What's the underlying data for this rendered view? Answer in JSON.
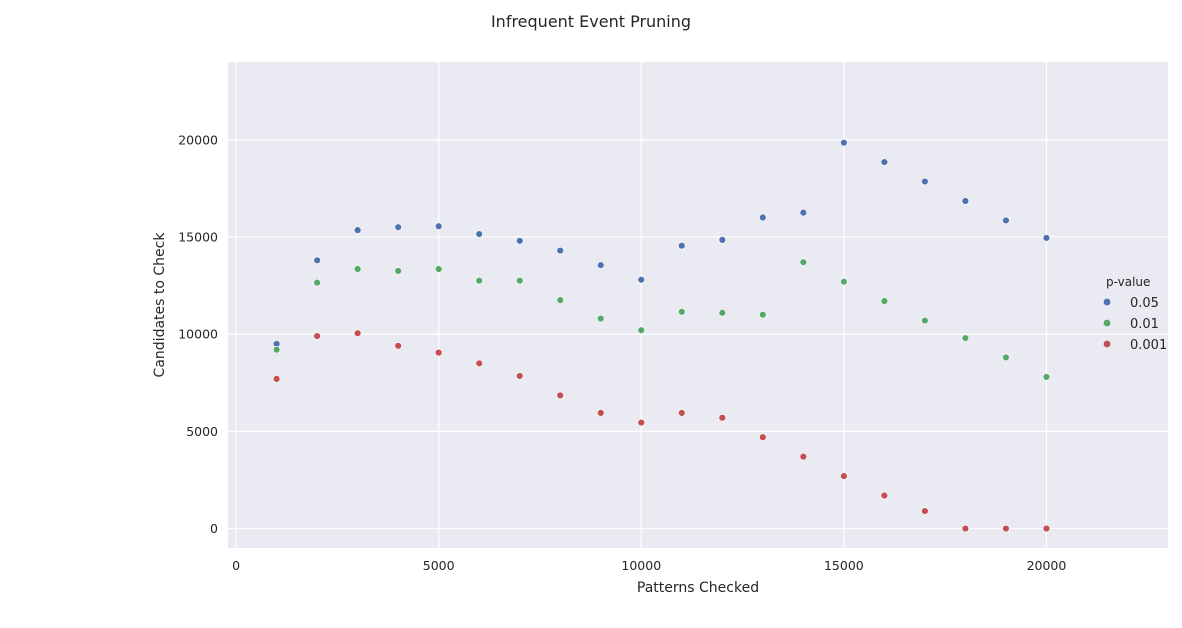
{
  "chart_data": {
    "type": "scatter",
    "title": "Infrequent Event Pruning",
    "xlabel": "Patterns Checked",
    "ylabel": "Candidates to Check",
    "xlim": [
      -200,
      23000
    ],
    "ylim": [
      -1000,
      24000
    ],
    "x_ticks": [
      0,
      5000,
      10000,
      15000,
      20000
    ],
    "y_ticks": [
      0,
      5000,
      10000,
      15000,
      20000
    ],
    "grid": true,
    "background": "#eaeaf2",
    "legend": {
      "title": "p-value",
      "placement": "right",
      "entries": [
        "0.05",
        "0.01",
        "0.001"
      ]
    },
    "series": [
      {
        "name": "0.05",
        "color": "#4c72b0",
        "x": [
          1000,
          2000,
          3000,
          4000,
          5000,
          6000,
          7000,
          8000,
          9000,
          10000,
          11000,
          12000,
          13000,
          14000,
          15000,
          16000,
          17000,
          18000,
          19000,
          20000
        ],
        "y": [
          9500,
          13800,
          15350,
          15500,
          15550,
          15150,
          14800,
          14300,
          13550,
          12800,
          14550,
          14850,
          16000,
          16250,
          19850,
          18850,
          17850,
          16850,
          15850,
          14950
        ]
      },
      {
        "name": "0.01",
        "color": "#55a868",
        "x": [
          1000,
          2000,
          3000,
          4000,
          5000,
          6000,
          7000,
          8000,
          9000,
          10000,
          11000,
          12000,
          13000,
          14000,
          15000,
          16000,
          17000,
          18000,
          19000,
          20000
        ],
        "y": [
          9200,
          12650,
          13350,
          13250,
          13350,
          12750,
          12750,
          11750,
          10800,
          10200,
          11150,
          11100,
          11000,
          13700,
          12700,
          11700,
          10700,
          9800,
          8800,
          7800
        ]
      },
      {
        "name": "0.001",
        "color": "#c44e52",
        "x": [
          1000,
          2000,
          3000,
          4000,
          5000,
          6000,
          7000,
          8000,
          9000,
          10000,
          11000,
          12000,
          13000,
          14000,
          15000,
          16000,
          17000,
          18000,
          19000,
          20000
        ],
        "y": [
          7700,
          9900,
          10050,
          9400,
          9050,
          8500,
          7850,
          6850,
          5950,
          5450,
          5950,
          5700,
          4700,
          3700,
          2700,
          1700,
          900,
          0,
          0,
          0
        ]
      }
    ]
  }
}
